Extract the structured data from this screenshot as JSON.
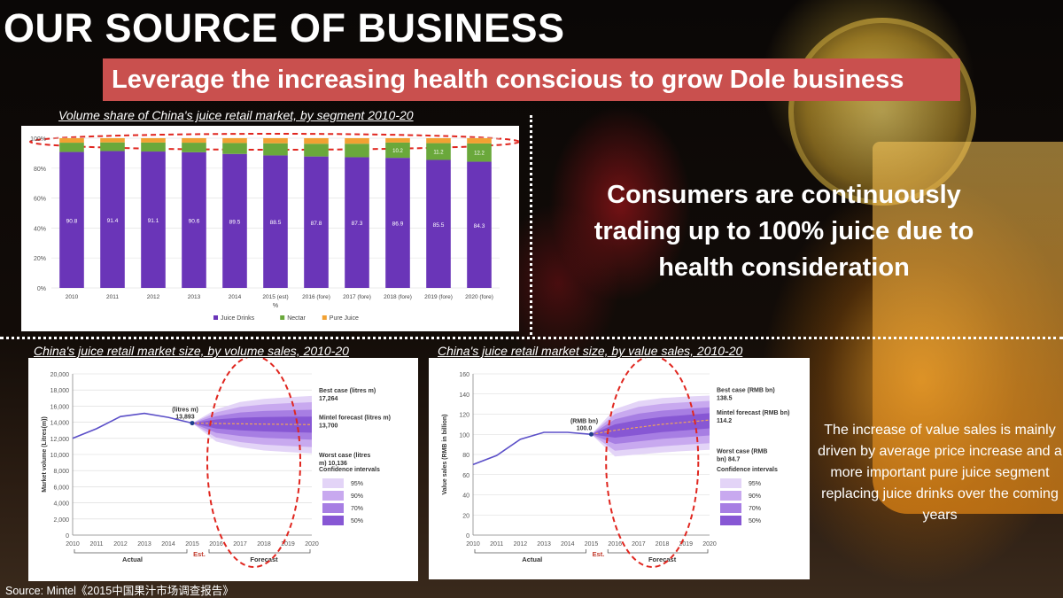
{
  "title": "OUR SOURCE OF BUSINESS",
  "banner": "Leverage the increasing health conscious to grow Dole business",
  "consumers_text": "Consumers are continuously trading up to 100% juice due to health consideration",
  "value_note": "The increase of value sales is mainly driven by average price increase and a more important pure juice segment replacing juice drinks over the coming years",
  "source": "Source: Mintel《2015中国果汁市场调查报告》",
  "colors": {
    "banner": "#c9504e",
    "purple": "#6a35b8",
    "green": "#6aa83b",
    "orange": "#f2a132",
    "highlight": "#e0261f"
  },
  "chart_data": [
    {
      "type": "bar",
      "caption": "Volume share of China's juice retail market, by segment 2010-20",
      "categories": [
        "2010",
        "2011",
        "2012",
        "2013",
        "2014",
        "2015 (est)",
        "2016 (fore)",
        "2017 (fore)",
        "2018 (fore)",
        "2019 (fore)",
        "2020 (fore)"
      ],
      "series": [
        {
          "name": "Juice Drinks",
          "values": [
            90.8,
            91.4,
            91.1,
            90.6,
            89.5,
            88.5,
            87.8,
            87.3,
            86.9,
            85.5,
            84.3
          ]
        },
        {
          "name": "Nectar",
          "values": [
            6.2,
            5.8,
            6.0,
            6.4,
            7.3,
            8.1,
            8.5,
            9.0,
            10.2,
            11.2,
            12.2
          ]
        },
        {
          "name": "Pure Juice",
          "values": [
            3.0,
            2.8,
            2.9,
            3.0,
            3.2,
            3.4,
            3.7,
            3.7,
            2.9,
            3.3,
            3.5
          ]
        }
      ],
      "juice_labels": [
        "90.8",
        "91.4",
        "91.1",
        "90.6",
        "89.5",
        "88.5",
        "87.8",
        "87.3",
        "86.9",
        "85.5",
        "84.3"
      ],
      "nectar_labels": [
        "10.2",
        "11.2",
        "12.2"
      ],
      "yticks": [
        "0%",
        "20%",
        "40%",
        "60%",
        "80%",
        "100%"
      ],
      "ylabel": "%",
      "ylim": [
        0,
        100
      ]
    },
    {
      "type": "area",
      "caption": "China's juice retail market size, by volume sales, 2010-20",
      "ylabel": "Market volume (Litres(m))",
      "yticks": [
        "0",
        "2,000",
        "4,000",
        "6,000",
        "8,000",
        "10,000",
        "12,000",
        "14,000",
        "16,000",
        "18,000",
        "20,000"
      ],
      "ylim": [
        0,
        20000
      ],
      "x": [
        "2010",
        "2011",
        "2012",
        "2013",
        "2014",
        "2015",
        "2016",
        "2017",
        "2018",
        "2019",
        "2020"
      ],
      "actual": [
        12000,
        13200,
        14700,
        15100,
        14600,
        13893
      ],
      "forecast": [
        13893,
        13850,
        13800,
        13770,
        13740,
        13700
      ],
      "best_case": [
        13893,
        15600,
        16500,
        16900,
        17100,
        17264
      ],
      "worst_case": [
        13893,
        11600,
        10900,
        10500,
        10300,
        10136
      ],
      "point_label": "(litres m)",
      "point_value": "13,893",
      "best_label": "Best case (litres m)",
      "best_value": "17,264",
      "forecast_label": "Mintel forecast (litres m)",
      "forecast_value": "13,700",
      "worst_label": "Worst case (litres",
      "worst_value": "m) 10,136",
      "periods": [
        "Actual",
        "Est.",
        "Forecast"
      ],
      "ci_title": "Confidence intervals",
      "ci_levels": [
        "95%",
        "90%",
        "70%",
        "50%"
      ]
    },
    {
      "type": "area",
      "caption": "China's juice retail market size, by value sales, 2010-20",
      "ylabel": "Value sales (RMB in billion)",
      "yticks": [
        "0",
        "20",
        "40",
        "60",
        "80",
        "100",
        "120",
        "140",
        "160"
      ],
      "ylim": [
        0,
        160
      ],
      "x": [
        "2010",
        "2011",
        "2012",
        "2013",
        "2014",
        "2015",
        "2016",
        "2017",
        "2018",
        "2019",
        "2020"
      ],
      "actual": [
        70,
        79,
        95,
        102,
        102,
        100.0
      ],
      "forecast": [
        100.0,
        104,
        107,
        110,
        112,
        114.2
      ],
      "best_case": [
        100.0,
        125,
        133,
        136,
        137.5,
        138.5
      ],
      "worst_case": [
        100.0,
        78,
        80,
        82,
        83.5,
        84.7
      ],
      "point_label": "(RMB bn)",
      "point_value": "100.0",
      "best_label": "Best case (RMB bn)",
      "best_value": "138.5",
      "forecast_label": "Mintel forecast (RMB bn)",
      "forecast_value": "114.2",
      "worst_label": "Worst case (RMB",
      "worst_value": "bn) 84.7",
      "periods": [
        "Actual",
        "Est.",
        "Forecast"
      ],
      "ci_title": "Confidence intervals",
      "ci_levels": [
        "95%",
        "90%",
        "70%",
        "50%"
      ]
    }
  ]
}
